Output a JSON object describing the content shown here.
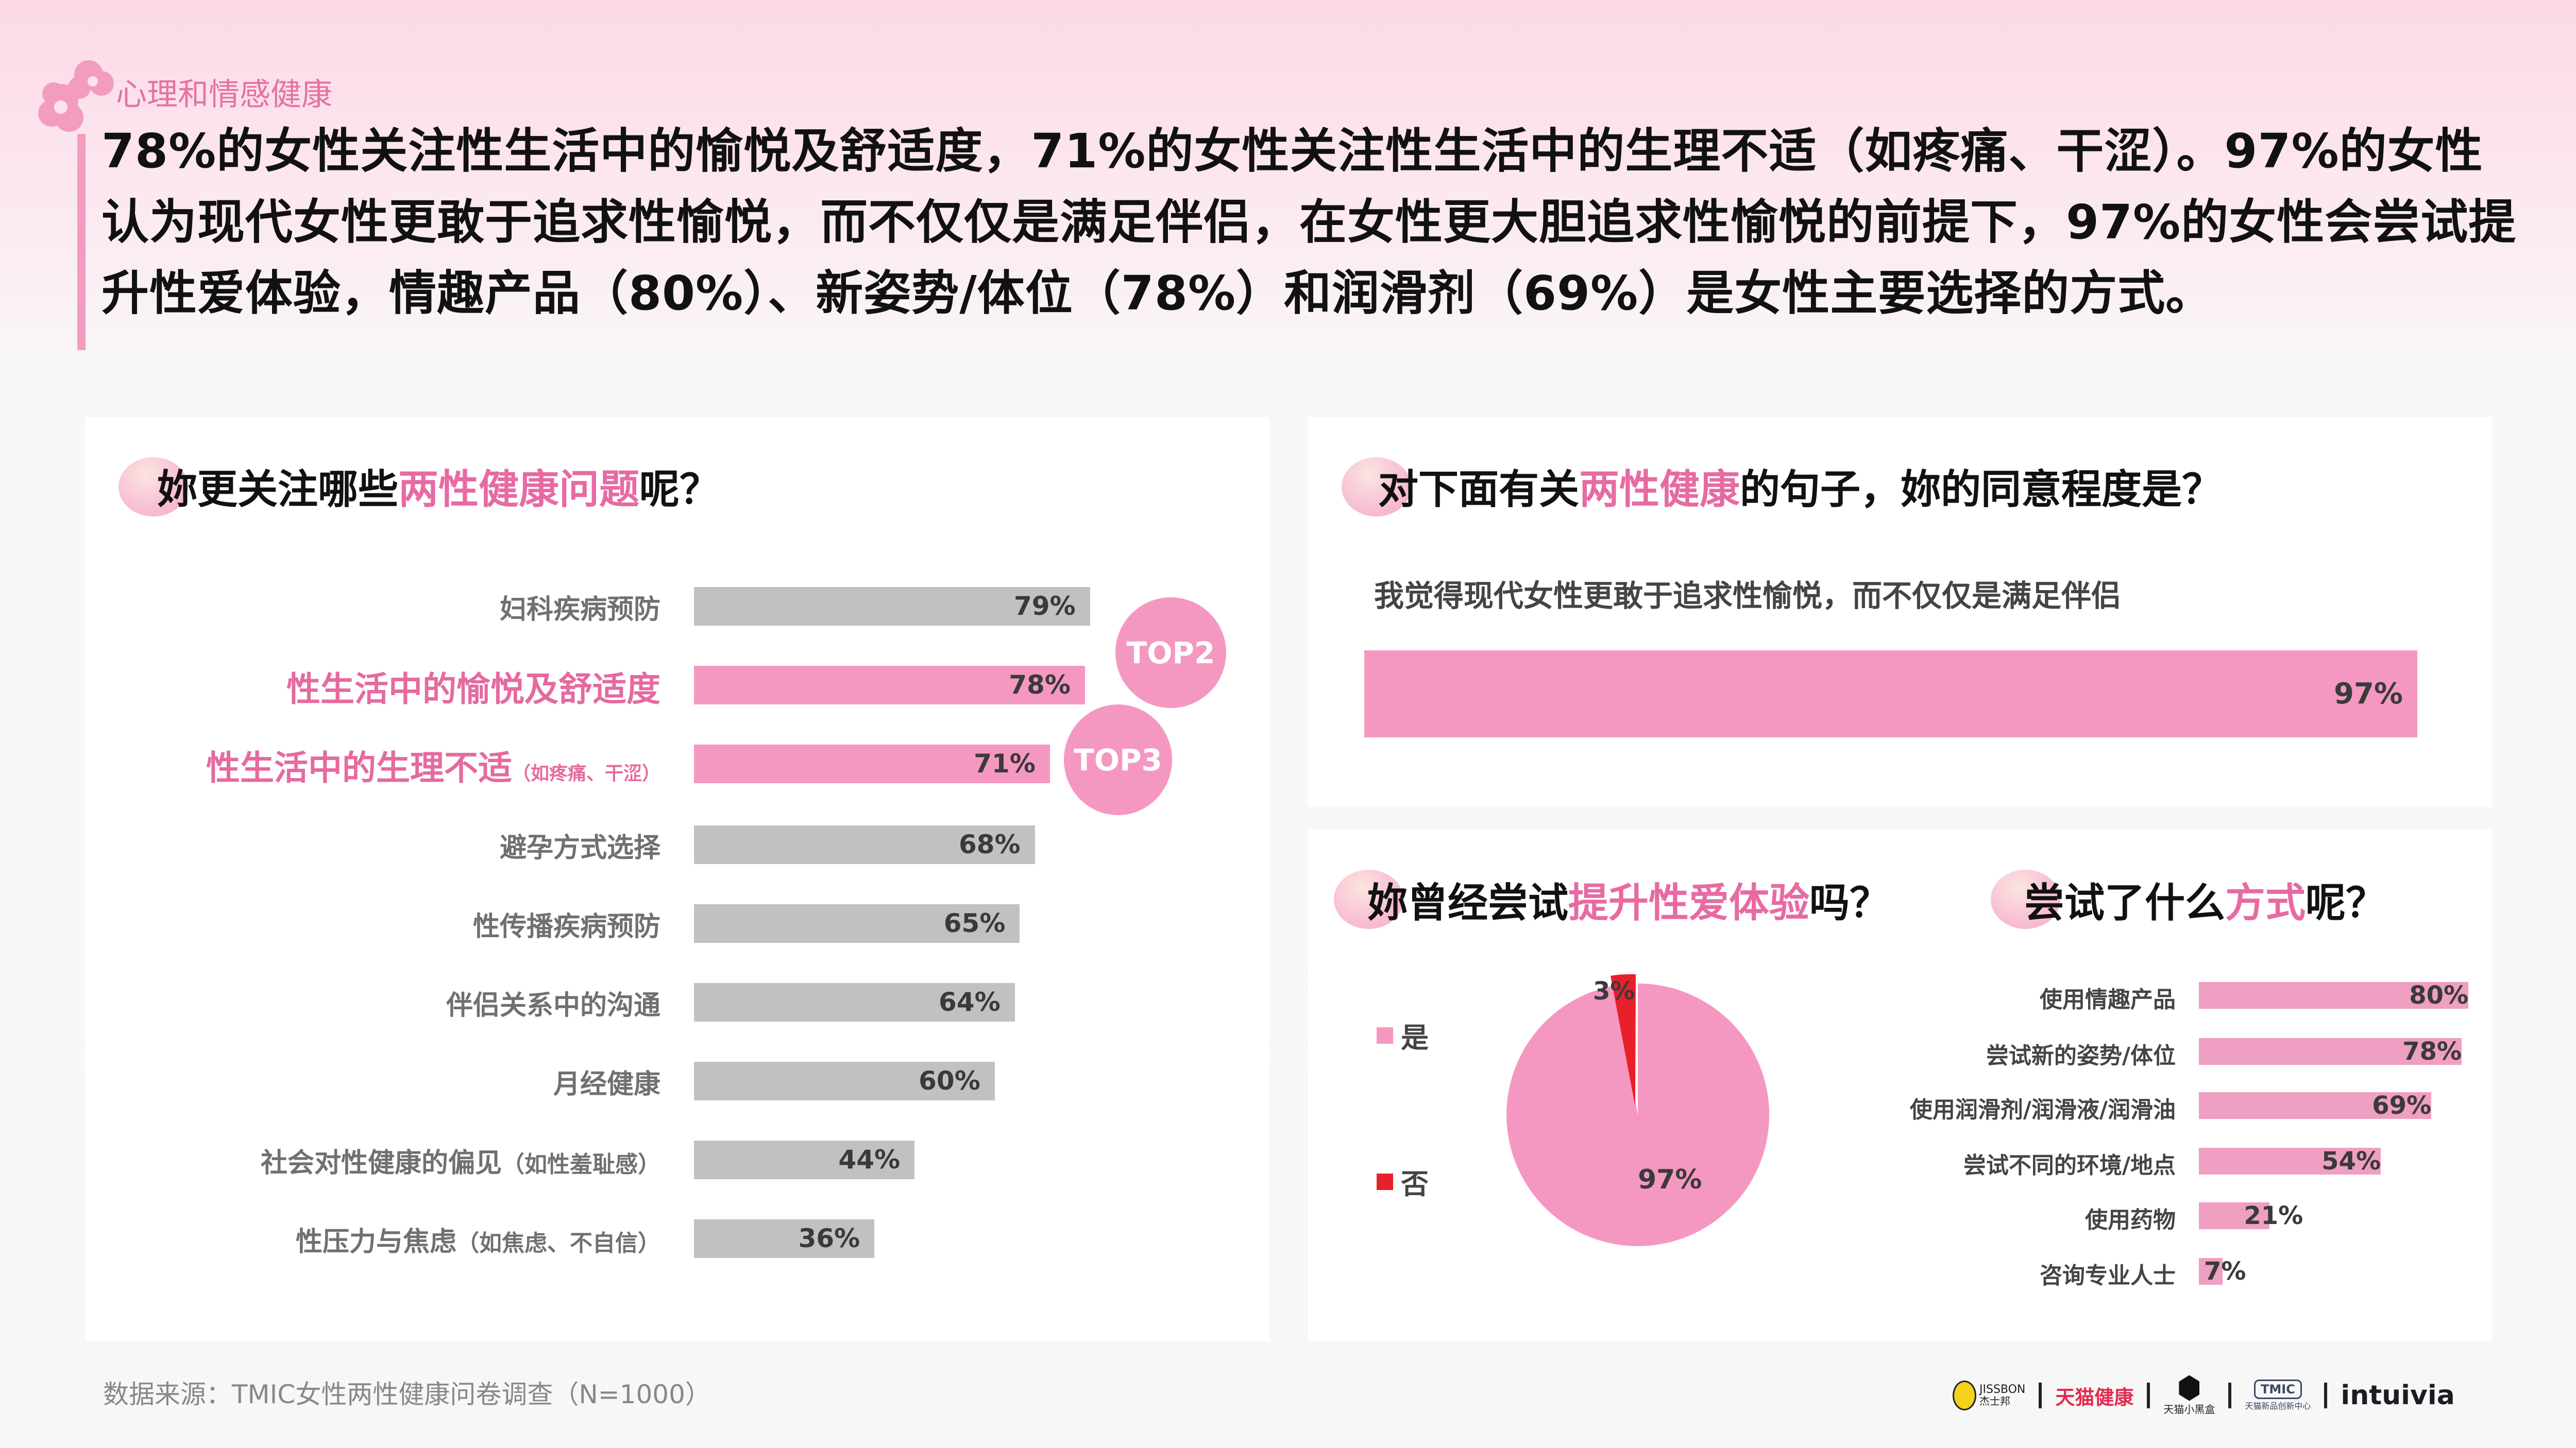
{
  "header": {
    "section_tag": "心理和情感健康",
    "headline": "78%的女性关注性生活中的愉悦及舒适度，71%的女性关注性生活中的生理不适（如疼痛、干涩）。97%的女性认为现代女性更敢于追求性愉悦，而不仅仅是满足伴侣，在女性更大胆追求性愉悦的前提下，97%的女性会尝试提升性爱体验，情趣产品（80%）、新姿势/体位（78%）和润滑剂（69%）是女性主要选择的方式。"
  },
  "colors": {
    "accent_pink": "#e76aa3",
    "bar_pink": "#f598c1",
    "bar_gray": "#c1c1c1",
    "no_red": "#e8202a",
    "text_dark": "#111111"
  },
  "panel_concerns": {
    "title_pre": "妳更关注哪些",
    "title_hl": "两性健康问题",
    "title_post": "呢？",
    "badges": [
      "TOP2",
      "TOP3"
    ]
  },
  "panel_agree": {
    "title_pre": "对下面有关",
    "title_hl": "两性健康",
    "title_post": "的句子，妳的同意程度是？",
    "statement": "我觉得现代女性更敢于追求性愉悦，而不仅仅是满足伴侣",
    "value_label": "97%"
  },
  "panel_tried": {
    "title_pre": "妳曾经尝试",
    "title_hl": "提升性爱体验",
    "title_post": "吗？",
    "legend": [
      {
        "label": "是",
        "color": "#f598c1"
      },
      {
        "label": "否",
        "color": "#e8202a"
      }
    ],
    "yes_label": "97%",
    "no_label": "3%"
  },
  "panel_methods": {
    "title_pre": "尝试了什么",
    "title_hl": "方式",
    "title_post": "呢？"
  },
  "chart_data": [
    {
      "type": "bar",
      "orientation": "horizontal",
      "title": "妳更关注哪些两性健康问题呢？",
      "categories": [
        "妇科疾病预防",
        "性生活中的愉悦及舒适度",
        "性生活中的生理不适（如疼痛、干涩）",
        "避孕方式选择",
        "性传播疾病预防",
        "伴侣关系中的沟通",
        "月经健康",
        "社会对性健康的偏见（如性羞耻感）",
        "性压力与焦虑（如焦虑、不自信）"
      ],
      "labels": [
        {
          "main": "妇科疾病预防",
          "note": ""
        },
        {
          "main": "性生活中的愉悦及舒适度",
          "note": ""
        },
        {
          "main": "性生活中的生理不适",
          "note": "（如疼痛、干涩）"
        },
        {
          "main": "避孕方式选择",
          "note": ""
        },
        {
          "main": "性传播疾病预防",
          "note": ""
        },
        {
          "main": "伴侣关系中的沟通",
          "note": ""
        },
        {
          "main": "月经健康",
          "note": ""
        },
        {
          "main": "社会对性健康的偏见",
          "note": "（如性羞耻感）"
        },
        {
          "main": "性压力与焦虑",
          "note": "（如焦虑、不自信）"
        }
      ],
      "values": [
        79,
        78,
        71,
        68,
        65,
        64,
        60,
        44,
        36
      ],
      "value_labels": [
        "79%",
        "78%",
        "71%",
        "68%",
        "65%",
        "64%",
        "60%",
        "44%",
        "36%"
      ],
      "highlighted": [
        false,
        true,
        true,
        false,
        false,
        false,
        false,
        false,
        false
      ],
      "annotations": [
        {
          "row": 1,
          "text": "TOP2"
        },
        {
          "row": 2,
          "text": "TOP3"
        }
      ],
      "unit": "%",
      "grid": false
    },
    {
      "type": "bar",
      "orientation": "horizontal",
      "title": "对下面有关两性健康的句子，妳的同意程度是？",
      "categories": [
        "我觉得现代女性更敢于追求性愉悦，而不仅仅是满足伴侣"
      ],
      "values": [
        97
      ],
      "value_labels": [
        "97%"
      ],
      "unit": "%"
    },
    {
      "type": "pie",
      "title": "妳曾经尝试提升性爱体验吗？",
      "categories": [
        "是",
        "否"
      ],
      "values": [
        97,
        3
      ],
      "value_labels": [
        "97%",
        "3%"
      ],
      "colors": [
        "#f598c1",
        "#e8202a"
      ],
      "legend_position": "left"
    },
    {
      "type": "bar",
      "orientation": "horizontal",
      "title": "尝试了什么方式呢？",
      "categories": [
        "使用情趣产品",
        "尝试新的姿势/体位",
        "使用润滑剂/润滑液/润滑油",
        "尝试不同的环境/地点",
        "使用药物",
        "咨询专业人士"
      ],
      "values": [
        80,
        78,
        69,
        54,
        21,
        7
      ],
      "value_labels": [
        "80%",
        "78%",
        "69%",
        "54%",
        "21%",
        "7%"
      ],
      "unit": "%"
    }
  ],
  "footer": {
    "source": "数据来源：TMIC女性两性健康问卷调查（N=1000）",
    "logos": [
      {
        "name": "JISSBON",
        "sub": "杰士邦"
      },
      {
        "name": "天猫健康",
        "sub": ""
      },
      {
        "name": "",
        "sub": "天猫小黑盒"
      },
      {
        "name": "TMIC",
        "sub": "天猫新品创新中心"
      },
      {
        "name": "intuivia",
        "sub": ""
      }
    ]
  }
}
